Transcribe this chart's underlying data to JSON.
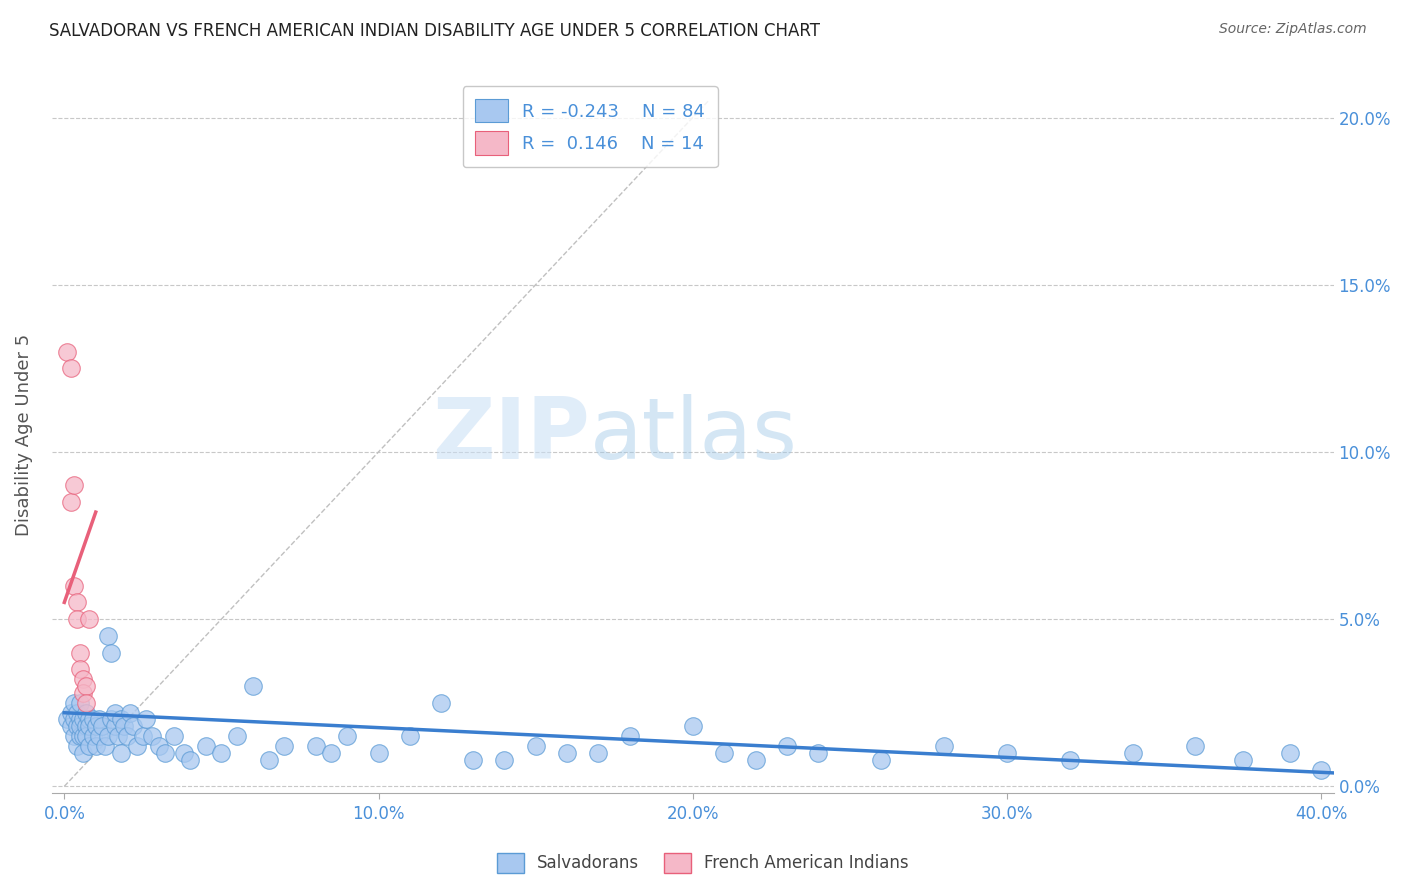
{
  "title": "SALVADORAN VS FRENCH AMERICAN INDIAN DISABILITY AGE UNDER 5 CORRELATION CHART",
  "source": "Source: ZipAtlas.com",
  "ylabel": "Disability Age Under 5",
  "xlabel_ticks": [
    "0.0%",
    "10.0%",
    "20.0%",
    "30.0%",
    "40.0%"
  ],
  "ylabel_ticks": [
    "0.0%",
    "5.0%",
    "10.0%",
    "15.0%",
    "20.0%"
  ],
  "xlim": [
    -0.004,
    0.404
  ],
  "ylim": [
    -0.002,
    0.212
  ],
  "watermark_zip": "ZIP",
  "watermark_atlas": "atlas",
  "legend_blue_r": "-0.243",
  "legend_blue_n": "84",
  "legend_pink_r": " 0.146",
  "legend_pink_n": "14",
  "blue_color": "#a8c8f0",
  "pink_color": "#f5b8c8",
  "blue_edge_color": "#5b9bd5",
  "pink_edge_color": "#e8607a",
  "blue_line_color": "#3a7ecf",
  "pink_line_color": "#e8607a",
  "diag_line_color": "#c0c0c0",
  "grid_color": "#c8c8c8",
  "title_color": "#222222",
  "axis_label_color": "#4a90d9",
  "source_color": "#666666",
  "ylabel_color": "#555555",
  "blue_scatter": [
    [
      0.001,
      0.02
    ],
    [
      0.002,
      0.022
    ],
    [
      0.002,
      0.018
    ],
    [
      0.003,
      0.025
    ],
    [
      0.003,
      0.015
    ],
    [
      0.003,
      0.02
    ],
    [
      0.004,
      0.018
    ],
    [
      0.004,
      0.022
    ],
    [
      0.004,
      0.012
    ],
    [
      0.005,
      0.02
    ],
    [
      0.005,
      0.015
    ],
    [
      0.005,
      0.025
    ],
    [
      0.005,
      0.018
    ],
    [
      0.006,
      0.02
    ],
    [
      0.006,
      0.015
    ],
    [
      0.006,
      0.01
    ],
    [
      0.007,
      0.018
    ],
    [
      0.007,
      0.022
    ],
    [
      0.007,
      0.015
    ],
    [
      0.008,
      0.02
    ],
    [
      0.008,
      0.012
    ],
    [
      0.008,
      0.018
    ],
    [
      0.009,
      0.015
    ],
    [
      0.009,
      0.02
    ],
    [
      0.01,
      0.018
    ],
    [
      0.01,
      0.012
    ],
    [
      0.011,
      0.015
    ],
    [
      0.011,
      0.02
    ],
    [
      0.012,
      0.018
    ],
    [
      0.013,
      0.012
    ],
    [
      0.014,
      0.045
    ],
    [
      0.014,
      0.015
    ],
    [
      0.015,
      0.02
    ],
    [
      0.015,
      0.04
    ],
    [
      0.016,
      0.018
    ],
    [
      0.016,
      0.022
    ],
    [
      0.017,
      0.015
    ],
    [
      0.018,
      0.02
    ],
    [
      0.018,
      0.01
    ],
    [
      0.019,
      0.018
    ],
    [
      0.02,
      0.015
    ],
    [
      0.021,
      0.022
    ],
    [
      0.022,
      0.018
    ],
    [
      0.023,
      0.012
    ],
    [
      0.025,
      0.015
    ],
    [
      0.026,
      0.02
    ],
    [
      0.028,
      0.015
    ],
    [
      0.03,
      0.012
    ],
    [
      0.032,
      0.01
    ],
    [
      0.035,
      0.015
    ],
    [
      0.038,
      0.01
    ],
    [
      0.04,
      0.008
    ],
    [
      0.045,
      0.012
    ],
    [
      0.05,
      0.01
    ],
    [
      0.055,
      0.015
    ],
    [
      0.06,
      0.03
    ],
    [
      0.065,
      0.008
    ],
    [
      0.07,
      0.012
    ],
    [
      0.08,
      0.012
    ],
    [
      0.085,
      0.01
    ],
    [
      0.09,
      0.015
    ],
    [
      0.1,
      0.01
    ],
    [
      0.11,
      0.015
    ],
    [
      0.12,
      0.025
    ],
    [
      0.13,
      0.008
    ],
    [
      0.14,
      0.008
    ],
    [
      0.15,
      0.012
    ],
    [
      0.16,
      0.01
    ],
    [
      0.17,
      0.01
    ],
    [
      0.18,
      0.015
    ],
    [
      0.2,
      0.018
    ],
    [
      0.21,
      0.01
    ],
    [
      0.22,
      0.008
    ],
    [
      0.23,
      0.012
    ],
    [
      0.24,
      0.01
    ],
    [
      0.26,
      0.008
    ],
    [
      0.28,
      0.012
    ],
    [
      0.3,
      0.01
    ],
    [
      0.32,
      0.008
    ],
    [
      0.34,
      0.01
    ],
    [
      0.36,
      0.012
    ],
    [
      0.375,
      0.008
    ],
    [
      0.39,
      0.01
    ],
    [
      0.4,
      0.005
    ]
  ],
  "pink_scatter": [
    [
      0.001,
      0.13
    ],
    [
      0.002,
      0.125
    ],
    [
      0.002,
      0.085
    ],
    [
      0.003,
      0.09
    ],
    [
      0.003,
      0.06
    ],
    [
      0.004,
      0.055
    ],
    [
      0.004,
      0.05
    ],
    [
      0.005,
      0.04
    ],
    [
      0.005,
      0.035
    ],
    [
      0.006,
      0.032
    ],
    [
      0.006,
      0.028
    ],
    [
      0.007,
      0.03
    ],
    [
      0.007,
      0.025
    ],
    [
      0.008,
      0.05
    ]
  ],
  "blue_trendline_x": [
    0.0,
    0.404
  ],
  "blue_trendline_y": [
    0.022,
    0.004
  ],
  "pink_trendline_x": [
    0.0,
    0.01
  ],
  "pink_trendline_y": [
    0.055,
    0.082
  ],
  "xtick_vals": [
    0.0,
    0.1,
    0.2,
    0.3,
    0.4
  ],
  "ytick_vals": [
    0.0,
    0.05,
    0.1,
    0.15,
    0.2
  ]
}
